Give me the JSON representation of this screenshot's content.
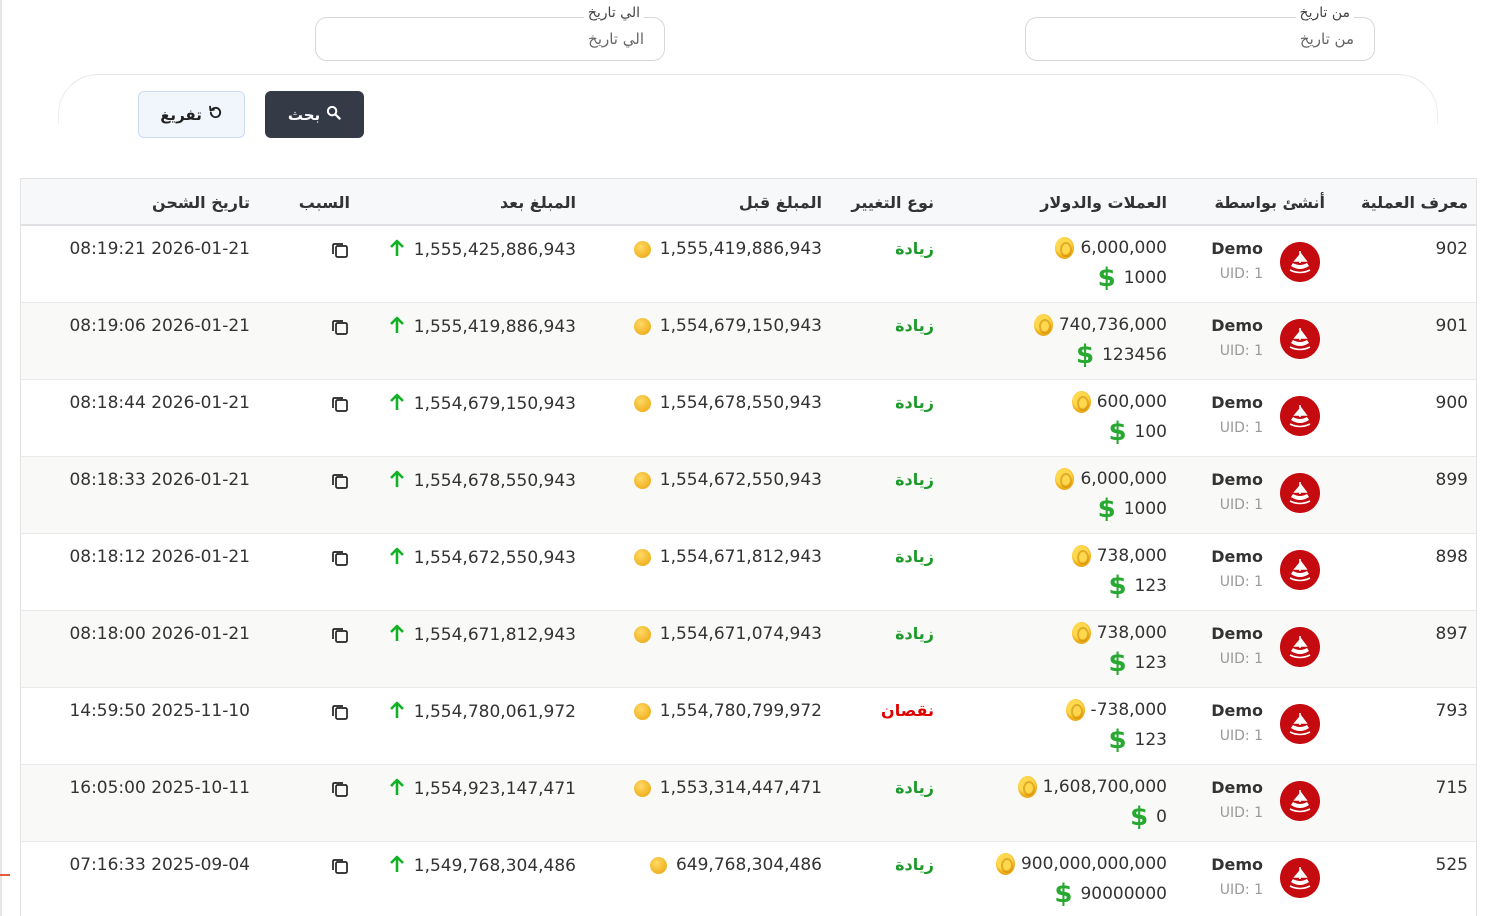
{
  "filters": {
    "from_label": "من تاريخ",
    "from_placeholder": "من تاريخ",
    "to_label": "الي تاريخ",
    "to_placeholder": "الي تاريخ"
  },
  "buttons": {
    "search_label": "بحث",
    "clear_label": "تفريغ"
  },
  "table": {
    "headers": {
      "id": "معرف العملية",
      "created_by": "أنشئ بواسطة",
      "coins_dollars": "العملات والدولار",
      "change_type": "نوع التغيير",
      "amount_before": "المبلغ قبل",
      "amount_after": "المبلغ بعد",
      "reason": "السبب",
      "charge_date": "تاريخ الشحن"
    },
    "rows": [
      {
        "id": "902",
        "user": "Demo",
        "uid": "UID: 1",
        "coins": "6,000,000",
        "dollars": "1000",
        "change": "زيادة",
        "type": "inc",
        "before": "1,555,419,886,943",
        "after": "1,555,425,886,943",
        "date": "2026-01-21 08:19:21"
      },
      {
        "id": "901",
        "user": "Demo",
        "uid": "UID: 1",
        "coins": "740,736,000",
        "dollars": "123456",
        "change": "زيادة",
        "type": "inc",
        "before": "1,554,679,150,943",
        "after": "1,555,419,886,943",
        "date": "2026-01-21 08:19:06"
      },
      {
        "id": "900",
        "user": "Demo",
        "uid": "UID: 1",
        "coins": "600,000",
        "dollars": "100",
        "change": "زيادة",
        "type": "inc",
        "before": "1,554,678,550,943",
        "after": "1,554,679,150,943",
        "date": "2026-01-21 08:18:44"
      },
      {
        "id": "899",
        "user": "Demo",
        "uid": "UID: 1",
        "coins": "6,000,000",
        "dollars": "1000",
        "change": "زيادة",
        "type": "inc",
        "before": "1,554,672,550,943",
        "after": "1,554,678,550,943",
        "date": "2026-01-21 08:18:33"
      },
      {
        "id": "898",
        "user": "Demo",
        "uid": "UID: 1",
        "coins": "738,000",
        "dollars": "123",
        "change": "زيادة",
        "type": "inc",
        "before": "1,554,671,812,943",
        "after": "1,554,672,550,943",
        "date": "2026-01-21 08:18:12"
      },
      {
        "id": "897",
        "user": "Demo",
        "uid": "UID: 1",
        "coins": "738,000",
        "dollars": "123",
        "change": "زيادة",
        "type": "inc",
        "before": "1,554,671,074,943",
        "after": "1,554,671,812,943",
        "date": "2026-01-21 08:18:00"
      },
      {
        "id": "793",
        "user": "Demo",
        "uid": "UID: 1",
        "coins": "738,000-",
        "dollars": "123",
        "change": "نقصان",
        "type": "dec",
        "before": "1,554,780,799,972",
        "after": "1,554,780,061,972",
        "date": "2025-11-10 14:59:50"
      },
      {
        "id": "715",
        "user": "Demo",
        "uid": "UID: 1",
        "coins": "1,608,700,000",
        "dollars": "0",
        "change": "زيادة",
        "type": "inc",
        "before": "1,553,314,447,471",
        "after": "1,554,923,147,471",
        "date": "2025-10-11 16:05:00"
      },
      {
        "id": "525",
        "user": "Demo",
        "uid": "UID: 1",
        "coins": "900,000,000,000",
        "dollars": "90000000",
        "change": "زيادة",
        "type": "inc",
        "before": "649,768,304,486",
        "after": "1,549,768,304,486",
        "date": "2025-09-04 07:16:33"
      }
    ]
  },
  "colors": {
    "increase": "#1e9a2b",
    "decrease": "#e00000",
    "avatar": "#c50b10",
    "search_button": "#343a46"
  },
  "icons": {
    "search": "search-icon",
    "clear": "refresh-icon",
    "coin": "gold-coin-icon",
    "dollar": "dollar-icon",
    "up": "arrow-up-icon",
    "copy": "copy-icon"
  }
}
